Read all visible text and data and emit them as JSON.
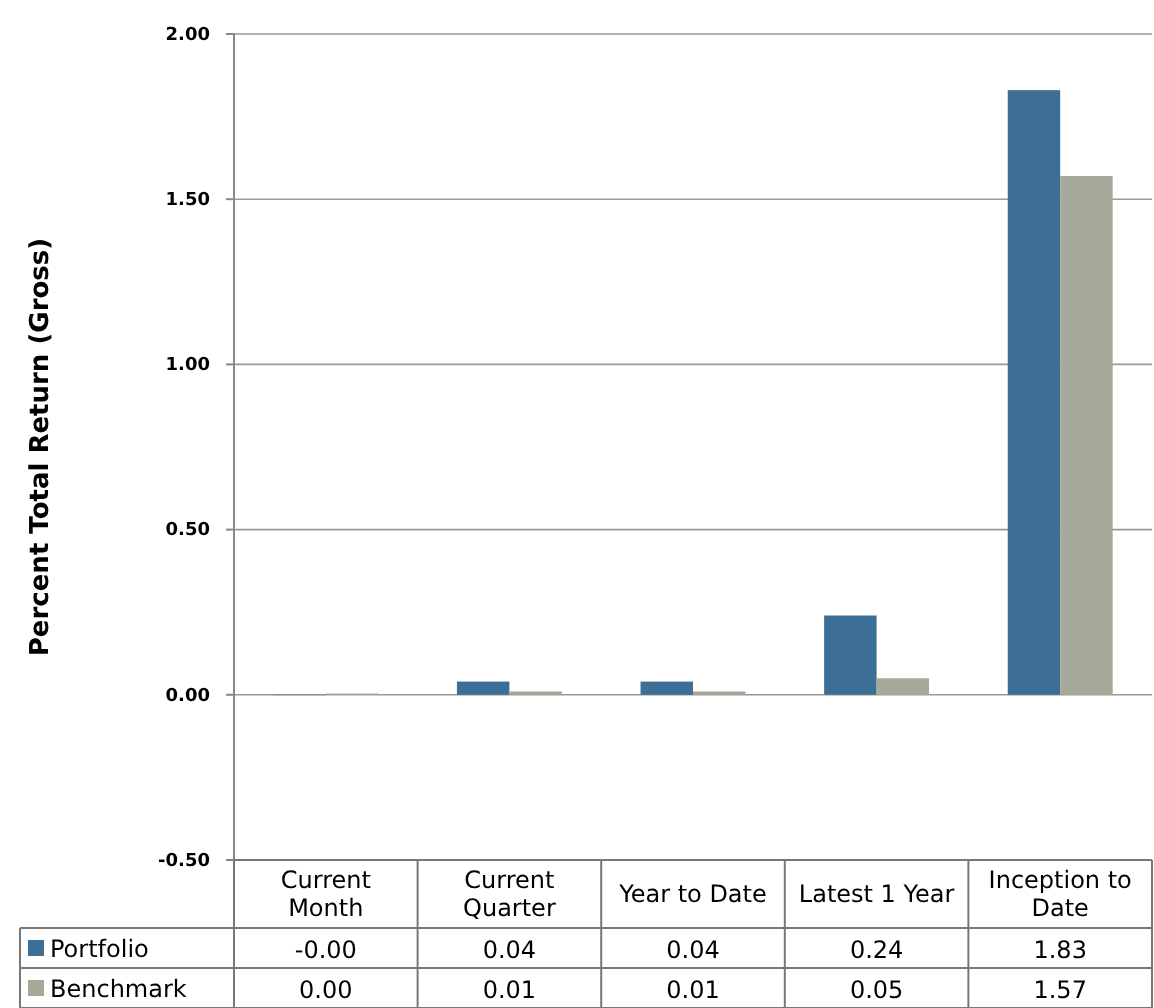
{
  "chart_data": {
    "type": "bar",
    "ylabel": "Percent Total Return (Gross)",
    "categories": [
      "Current Month",
      "Current Quarter",
      "Year to Date",
      "Latest 1 Year",
      "Inception to Date"
    ],
    "series": [
      {
        "name": "Portfolio",
        "color": "#3d6e96",
        "values": [
          -0.001,
          0.04,
          0.04,
          0.24,
          1.83
        ],
        "value_labels": [
          "-0.00",
          "0.04",
          "0.04",
          "0.24",
          "1.83"
        ]
      },
      {
        "name": "Benchmark",
        "color": "#a6a89a",
        "values": [
          0.004,
          0.01,
          0.01,
          0.05,
          1.57
        ],
        "value_labels": [
          "0.00",
          "0.01",
          "0.01",
          "0.05",
          "1.57"
        ]
      }
    ],
    "ylim": [
      -0.5,
      2
    ],
    "yticks": [
      {
        "value": -0.5,
        "label": "-0.50"
      },
      {
        "value": 0,
        "label": "0.00"
      },
      {
        "value": 0.5,
        "label": "0.50"
      },
      {
        "value": 1,
        "label": "1.00"
      },
      {
        "value": 1.5,
        "label": "1.50"
      },
      {
        "value": 2,
        "label": "2.00"
      }
    ],
    "grid": "y",
    "legend": "bottom"
  }
}
